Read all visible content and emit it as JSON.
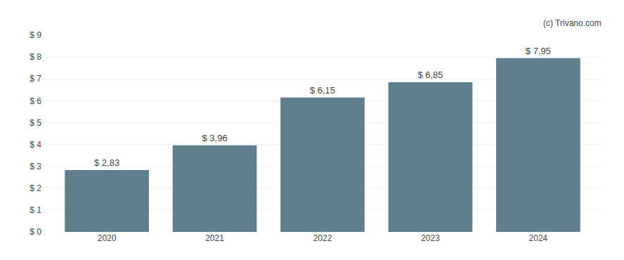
{
  "chart_data": {
    "type": "bar",
    "categories": [
      "2020",
      "2021",
      "2022",
      "2023",
      "2024"
    ],
    "values": [
      2.83,
      3.96,
      6.15,
      6.85,
      7.95
    ],
    "value_labels": [
      "$ 2,83",
      "$ 3,96",
      "$ 6,15",
      "$ 6,85",
      "$ 7,95"
    ],
    "data_labels": true,
    "color": "#5f7f8f",
    "ylim": [
      0,
      9
    ],
    "yticks": [
      {
        "value": 0,
        "label": "$ 0"
      },
      {
        "value": 1,
        "label": "$ 1"
      },
      {
        "value": 2,
        "label": "$ 2"
      },
      {
        "value": 3,
        "label": "$ 3"
      },
      {
        "value": 4,
        "label": "$ 4"
      },
      {
        "value": 5,
        "label": "$ 5"
      },
      {
        "value": 6,
        "label": "$ 6"
      },
      {
        "value": 7,
        "label": "$ 7"
      },
      {
        "value": 8,
        "label": "$ 8"
      },
      {
        "value": 9,
        "label": "$ 9"
      }
    ],
    "grid": true,
    "annotations": [
      "(c) Trivano.com"
    ]
  }
}
